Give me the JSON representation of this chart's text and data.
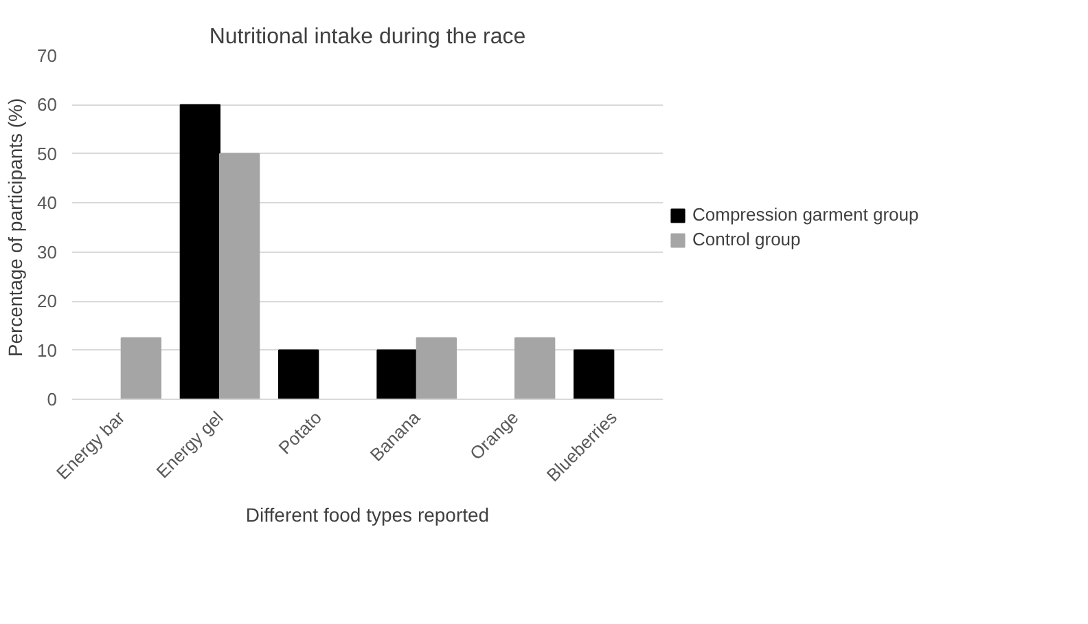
{
  "chart_data": {
    "type": "bar",
    "title": "Nutritional intake during the race",
    "xlabel": "Different food types reported",
    "ylabel": "Percentage of participants (%)",
    "categories": [
      "Energy bar",
      "Energy gel",
      "Potato",
      "Banana",
      "Orange",
      "Blueberries"
    ],
    "series": [
      {
        "name": "Compression garment group",
        "color": "#000000",
        "values": [
          0,
          60,
          10,
          10,
          0,
          10
        ]
      },
      {
        "name": "Control group",
        "color": "#a5a5a5",
        "values": [
          12.5,
          50,
          0,
          12.5,
          12.5,
          0
        ]
      }
    ],
    "ylim": [
      0,
      70
    ],
    "yticks": [
      0,
      10,
      20,
      30,
      40,
      50,
      60,
      70
    ],
    "grid": "y",
    "legend": "right"
  }
}
